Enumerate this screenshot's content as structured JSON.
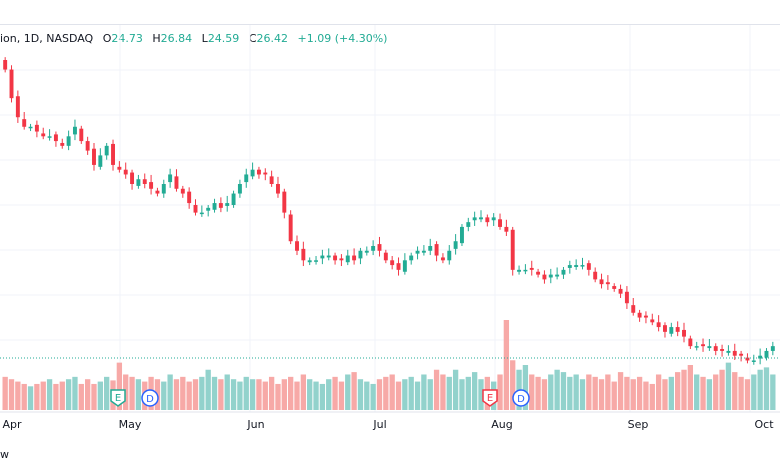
{
  "legend": {
    "symbol": "ion, 1D, NASDAQ",
    "o_label": "O",
    "o_value": "24.73",
    "h_label": "H",
    "h_value": "26.84",
    "l_label": "L",
    "l_value": "24.59",
    "c_label": "C",
    "c_value": "26.42",
    "change": "+1.09 (+4.30%)"
  },
  "footer_text": "w",
  "colors": {
    "up": "#22ab94",
    "down": "#f23645",
    "up_vol": "#92d2cc",
    "down_vol": "#f7a9a7",
    "grid": "#f0f3fa"
  },
  "events": [
    {
      "letter": "E",
      "x_month": "May",
      "kind": "earnings"
    },
    {
      "letter": "D",
      "x_month": "May",
      "kind": "dividend"
    },
    {
      "letter": "E",
      "x_month": "Aug",
      "kind": "earnings"
    },
    {
      "letter": "D",
      "x_month": "Aug",
      "kind": "dividend"
    }
  ],
  "chart_data": {
    "type": "candlestick",
    "x_tick_labels": [
      "Apr",
      "May",
      "Jun",
      "Jul",
      "Aug",
      "Sep",
      "Oct"
    ],
    "last_close": 26.42,
    "closes": [
      78,
      72,
      68,
      66,
      66,
      65,
      64,
      64,
      63,
      62,
      64,
      66,
      63,
      61,
      58,
      60,
      62,
      58,
      57,
      56,
      54,
      55,
      54,
      53,
      52,
      54,
      56,
      53,
      52,
      50,
      48,
      48,
      49,
      50,
      49,
      50,
      52,
      54,
      56,
      57,
      56,
      56,
      54,
      52,
      48,
      42,
      40,
      38,
      38,
      38,
      39,
      39,
      38,
      38,
      39,
      38,
      40,
      40,
      41,
      40,
      38,
      37,
      36,
      38,
      39,
      40,
      40,
      41,
      39,
      38,
      40,
      42,
      45,
      46,
      47,
      47,
      46,
      47,
      45,
      44,
      36,
      36,
      36,
      36,
      35,
      34,
      35,
      35,
      36,
      37,
      37,
      37,
      36,
      34,
      33,
      33,
      32,
      31,
      29,
      27,
      26,
      26,
      25,
      24,
      23,
      24,
      23,
      22,
      20,
      20,
      20,
      20,
      19,
      19,
      19,
      18,
      18,
      17,
      17,
      18,
      19,
      20
    ],
    "volumes": [
      28,
      26,
      24,
      22,
      20,
      22,
      24,
      26,
      22,
      24,
      26,
      28,
      22,
      26,
      22,
      24,
      28,
      25,
      40,
      30,
      28,
      26,
      24,
      28,
      26,
      24,
      30,
      26,
      28,
      24,
      26,
      28,
      34,
      28,
      26,
      30,
      26,
      24,
      28,
      26,
      26,
      24,
      28,
      22,
      26,
      28,
      24,
      30,
      26,
      24,
      22,
      26,
      28,
      24,
      30,
      32,
      26,
      24,
      22,
      26,
      28,
      30,
      24,
      26,
      28,
      24,
      30,
      26,
      34,
      30,
      28,
      34,
      26,
      28,
      32,
      26,
      28,
      24,
      30,
      76,
      42,
      34,
      38,
      30,
      28,
      26,
      30,
      34,
      32,
      28,
      30,
      26,
      30,
      28,
      26,
      30,
      24,
      32,
      28,
      26,
      28,
      24,
      22,
      30,
      26,
      28,
      32,
      34,
      38,
      30,
      28,
      26,
      30,
      34,
      40,
      32,
      28,
      26,
      30,
      34,
      36,
      30
    ]
  }
}
